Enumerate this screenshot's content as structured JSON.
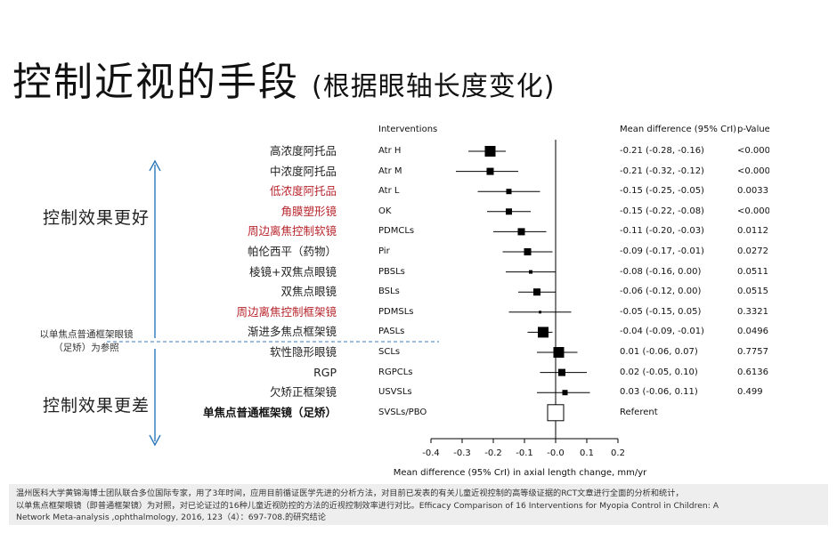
{
  "slide": {
    "title": "控制近视的手段",
    "subtitle": "(根据眼轴长度变化)",
    "better_label": "控制效果更好",
    "worse_label": "控制效果更差",
    "reference_note": [
      "以单焦点普通框架眼镜",
      "（足矫）为参照"
    ]
  },
  "table_headers": {
    "interventions": "Interventions",
    "mean_difference": "Mean difference (95% CrI)",
    "p_value": "p-Value"
  },
  "chart_data": {
    "type": "forest",
    "xlabel": "Mean difference (95% CrI) in axial length change, mm/yr",
    "xlim": [
      -0.4,
      0.2
    ],
    "xticks": [
      -0.4,
      -0.3,
      -0.2,
      -0.1,
      -0.0,
      0.1,
      0.2
    ],
    "xtick_labels": [
      "-0.4",
      "-0.3",
      "-0.2",
      "-0.1",
      "-0.0",
      "0.1",
      "0.2"
    ],
    "reference_line": 0,
    "rows": [
      {
        "cn": "高浓度阿托品",
        "style": "normal",
        "abbr": "Atr H",
        "md": -0.21,
        "lo": -0.28,
        "hi": -0.16,
        "size": 6,
        "md_text": "-0.21 (-0.28, -0.16)",
        "p": "<0.0001"
      },
      {
        "cn": "中浓度阿托品",
        "style": "normal",
        "abbr": "Atr M",
        "md": -0.21,
        "lo": -0.32,
        "hi": -0.12,
        "size": 4,
        "md_text": "-0.21 (-0.32, -0.12)",
        "p": "<0.0001"
      },
      {
        "cn": "低浓度阿托品",
        "style": "red",
        "abbr": "Atr L",
        "md": -0.15,
        "lo": -0.25,
        "hi": -0.05,
        "size": 3,
        "md_text": "-0.15 (-0.25, -0.05)",
        "p": "0.0033"
      },
      {
        "cn": "角膜塑形镜",
        "style": "red",
        "abbr": "OK",
        "md": -0.15,
        "lo": -0.22,
        "hi": -0.08,
        "size": 3.5,
        "md_text": "-0.15 (-0.22, -0.08)",
        "p": "<0.0001"
      },
      {
        "cn": "周边离焦控制软镜",
        "style": "red",
        "abbr": "PDMCLs",
        "md": -0.11,
        "lo": -0.2,
        "hi": -0.03,
        "size": 4,
        "md_text": "-0.11 (-0.20, -0.03)",
        "p": "0.0112"
      },
      {
        "cn": "帕伦西平（药物）",
        "style": "normal",
        "abbr": "Pir",
        "md": -0.09,
        "lo": -0.17,
        "hi": -0.01,
        "size": 4,
        "md_text": "-0.09 (-0.17, -0.01)",
        "p": "0.0272"
      },
      {
        "cn": "棱镜+双焦点眼镜",
        "style": "normal",
        "abbr": "PBSLs",
        "md": -0.08,
        "lo": -0.16,
        "hi": 0.0,
        "size": 2,
        "md_text": "-0.08 (-0.16, 0.00)",
        "p": "0.0511"
      },
      {
        "cn": "双焦点眼镜",
        "style": "normal",
        "abbr": "BSLs",
        "md": -0.06,
        "lo": -0.12,
        "hi": 0.0,
        "size": 4,
        "md_text": "-0.06 (-0.12, 0.00)",
        "p": "0.0515"
      },
      {
        "cn": "周边离焦控制框架镜",
        "style": "red",
        "abbr": "PDMSLs",
        "md": -0.05,
        "lo": -0.15,
        "hi": 0.05,
        "size": 1.5,
        "md_text": "-0.05 (-0.15, 0.05)",
        "p": "0.3321"
      },
      {
        "cn": "渐进多焦点框架镜",
        "style": "normal",
        "abbr": "PASLs",
        "md": -0.04,
        "lo": -0.09,
        "hi": -0.01,
        "size": 6,
        "md_text": "-0.04 (-0.09, -0.01)",
        "p": "0.0496"
      },
      {
        "cn": "软性隐形眼镜",
        "style": "normal",
        "abbr": "SCLs",
        "md": 0.01,
        "lo": -0.06,
        "hi": 0.07,
        "size": 6,
        "md_text": "0.01 (-0.06, 0.07)",
        "p": "0.7757"
      },
      {
        "cn": "RGP",
        "style": "normal",
        "abbr": "RGPCLs",
        "md": 0.02,
        "lo": -0.05,
        "hi": 0.1,
        "size": 4,
        "md_text": "0.02 (-0.05, 0.10)",
        "p": "0.6136"
      },
      {
        "cn": "欠矫正框架镜",
        "style": "normal",
        "abbr": "USVSLs",
        "md": 0.03,
        "lo": -0.06,
        "hi": 0.11,
        "size": 3,
        "md_text": "0.03 (-0.06, 0.11)",
        "p": "0.499"
      },
      {
        "cn": "单焦点普通框架镜（足矫）",
        "style": "bold",
        "abbr": "SVSLs/PBO",
        "md": 0,
        "lo": null,
        "hi": null,
        "size": 0,
        "md_text": "Referent",
        "p": "",
        "referent": true
      }
    ]
  },
  "footnote": [
    "温州医科大学黄锦海博士团队联合多位国际专家，用了3年时间，应用目前循证医学先进的分析方法，对目前已发表的有关儿童近视控制的高等级证据的RCT文章进行全面的分析和统计，",
    "以单焦点框架眼镜（即普通框架镜）为对照，对已论证过的16种儿童近视防控的方法的近视控制效率进行对比。Efficacy Comparison of 16 Interventions for Myopia Control in Children: A",
    "Network Meta-analysis ,ophthalmology, 2016, 123（4）：697-708.的研究结论"
  ],
  "colors": {
    "highlight_red": "#b8252c",
    "arrow_blue": "#2e78b8",
    "dashed_blue": "#3a78c0",
    "marker": "#000000"
  }
}
